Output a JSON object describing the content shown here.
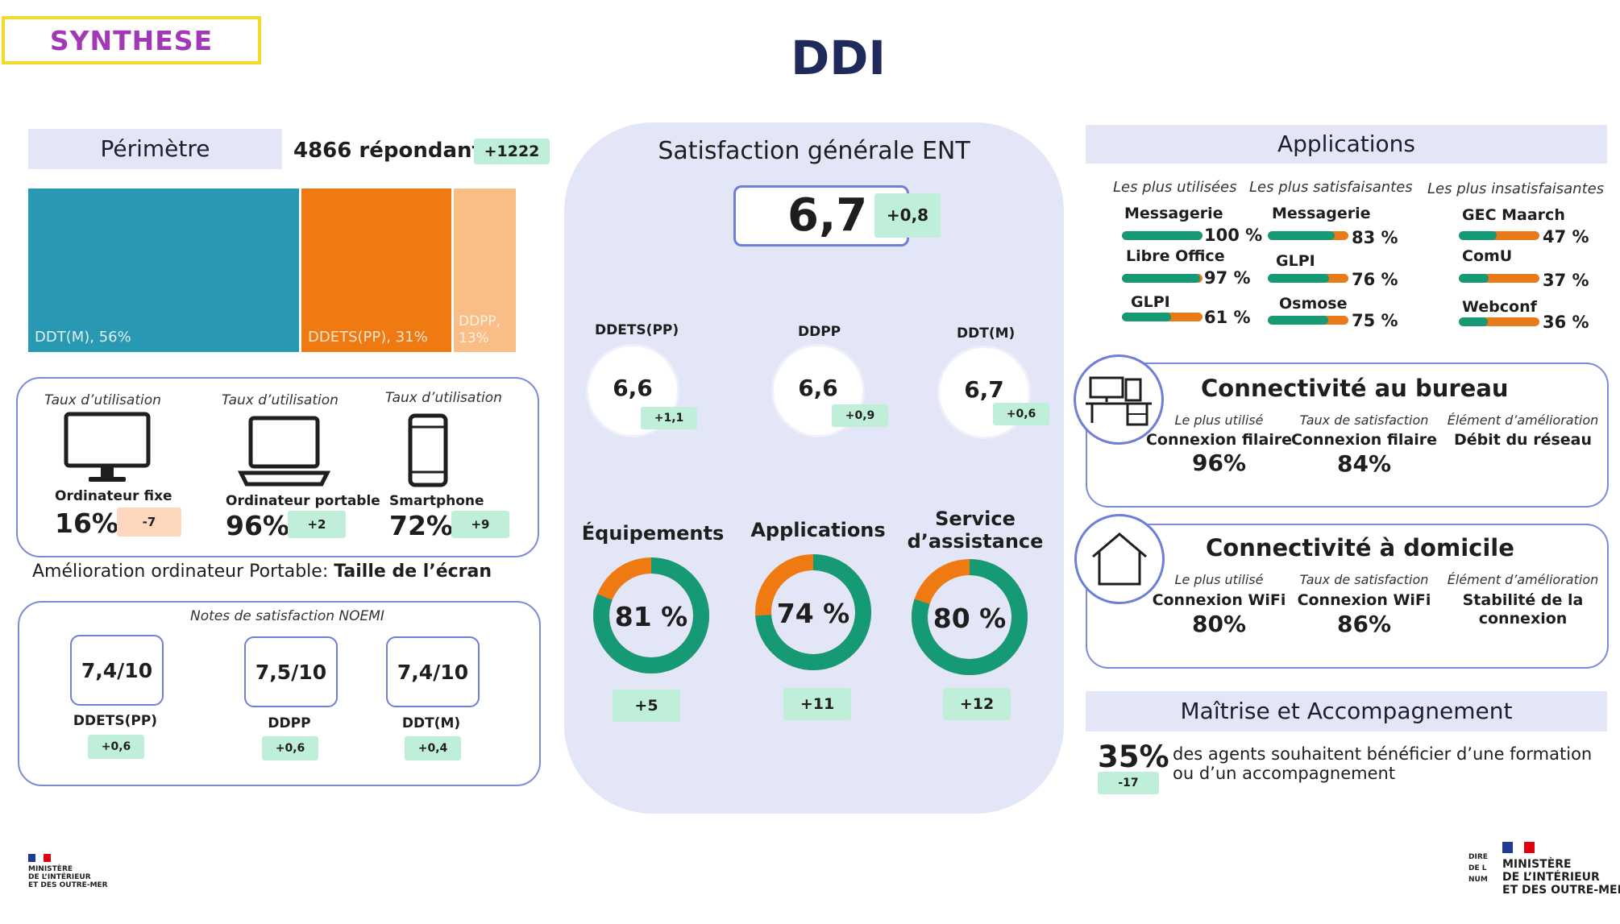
{
  "header": {
    "tag": "SYNTHESE",
    "title": "DDI"
  },
  "perimetre": {
    "title": "Périmètre",
    "respondents": "4866 répondants",
    "respondents_delta": "+1222",
    "segments": [
      {
        "label": "DDT(M), 56%",
        "share": 56,
        "color": "#2998b2"
      },
      {
        "label": "DDETS(PP), 31%",
        "share": 31,
        "color": "#ef7a12"
      },
      {
        "label": "DDPP, 13%",
        "share": 13,
        "color": "#f9bd86"
      }
    ]
  },
  "usage": {
    "caption": "Taux d’utilisation",
    "devices": [
      {
        "name": "Ordinateur fixe",
        "value": "16%",
        "delta": "-7",
        "icon": "desktop-icon"
      },
      {
        "name": "Ordinateur portable",
        "value": "96%",
        "delta": "+2",
        "icon": "laptop-icon"
      },
      {
        "name": "Smartphone",
        "value": "72%",
        "delta": "+9",
        "icon": "smartphone-icon"
      }
    ],
    "improvement_prefix": "Amélioration ordinateur Portable: ",
    "improvement_value": "Taille de l’écran"
  },
  "noemi": {
    "title": "Notes de satisfaction NOEMI",
    "notes": [
      {
        "score": "7,4/10",
        "entity": "DDETS(PP)",
        "delta": "+0,6"
      },
      {
        "score": "7,5/10",
        "entity": "DDPP",
        "delta": "+0,6"
      },
      {
        "score": "7,4/10",
        "entity": "DDT(M)",
        "delta": "+0,4"
      }
    ]
  },
  "satisfaction": {
    "title": "Satisfaction générale ENT",
    "score": "6,7",
    "delta": "+0,8",
    "entities": [
      {
        "name": "DDETS(PP)",
        "score": "6,6",
        "delta": "+1,1"
      },
      {
        "name": "DDPP",
        "score": "6,6",
        "delta": "+0,9"
      },
      {
        "name": "DDT(M)",
        "score": "6,7",
        "delta": "+0,6"
      }
    ],
    "donuts": [
      {
        "label": "Équipements",
        "label2": "",
        "value": "81 %",
        "pct": 81,
        "delta": "+5"
      },
      {
        "label": "Applications",
        "label2": "",
        "value": "74 %",
        "pct": 74,
        "delta": "+11"
      },
      {
        "label": "Service",
        "label2": "d’assistance",
        "value": "80 %",
        "pct": 80,
        "delta": "+12"
      }
    ]
  },
  "applications": {
    "title": "Applications",
    "columns": [
      {
        "title": "Les plus utilisées",
        "items": [
          {
            "name": "Messagerie",
            "value": "100 %",
            "pct": 100
          },
          {
            "name": "Libre Office",
            "value": "97 %",
            "pct": 97
          },
          {
            "name": "GLPI",
            "value": "61 %",
            "pct": 61
          }
        ]
      },
      {
        "title": "Les plus satisfaisantes",
        "items": [
          {
            "name": "Messagerie",
            "value": "83 %",
            "pct": 83
          },
          {
            "name": "GLPI",
            "value": "76 %",
            "pct": 76
          },
          {
            "name": "Osmose",
            "value": "75 %",
            "pct": 75
          }
        ]
      },
      {
        "title": "Les plus insatisfaisantes",
        "items": [
          {
            "name": "GEC Maarch",
            "value": "47 %",
            "pct": 47
          },
          {
            "name": "ComU",
            "value": "37 %",
            "pct": 37
          },
          {
            "name": "Webconf",
            "value": "36 %",
            "pct": 36
          }
        ]
      }
    ]
  },
  "office": {
    "title": "Connectivité au bureau",
    "cols": [
      {
        "caption": "Le plus utilisé",
        "text": "Connexion filaire",
        "value": "96%"
      },
      {
        "caption": "Taux de satisfaction",
        "text": "Connexion filaire",
        "value": "84%"
      },
      {
        "caption": "Élément d’amélioration",
        "text": "Débit du réseau",
        "value": ""
      }
    ]
  },
  "home": {
    "title": "Connectivité à domicile",
    "cols": [
      {
        "caption": "Le plus utilisé",
        "text": "Connexion WiFi",
        "value": "80%"
      },
      {
        "caption": "Taux de satisfaction",
        "text": "Connexion WiFi",
        "value": "86%"
      },
      {
        "caption": "Élément d’amélioration",
        "text": "Stabilité de la",
        "text2": "connexion"
      }
    ]
  },
  "maitrise": {
    "title": "Maîtrise et Accompagnement",
    "value": "35%",
    "delta": "-17",
    "line1": "des agents souhaitent bénéficier d’une formation",
    "line2": "ou d’un accompagnement"
  },
  "footer": {
    "left_logo": [
      "MINISTÈRE",
      "DE L’INTÉRIEUR",
      "ET DES OUTRE-MER"
    ],
    "right_logo": [
      "MINISTÈRE",
      "DE L’INTÉRIEUR",
      "ET DES OUTRE-MER"
    ],
    "right_prefix": [
      "DIRE",
      "DE L",
      "NUM"
    ]
  },
  "colors": {
    "green": "#159a75",
    "orange": "#ef7a12",
    "badge_green": "#bfefd8",
    "badge_orange": "#fcd6bd",
    "panel": "#e3e6f6",
    "navy": "#1f2a5a"
  }
}
